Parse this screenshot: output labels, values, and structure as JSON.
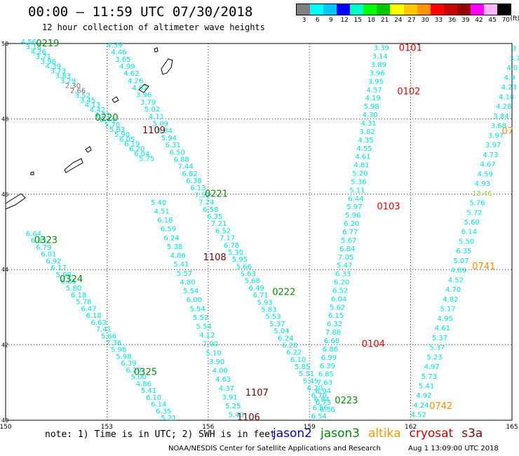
{
  "header": {
    "title": "00:00 – 11:59 UTC 07/30/2018",
    "subtitle": "12 hour collection of altimeter wave heights"
  },
  "legend": {
    "colors": [
      "#808080",
      "#00ffff",
      "#00c8ff",
      "#0000ff",
      "#00ffc8",
      "#00ff00",
      "#00c800",
      "#ffff00",
      "#ffc800",
      "#ff9600",
      "#ff0000",
      "#c80000",
      "#960000",
      "#ff00ff",
      "#ffb4ff",
      "#000000"
    ],
    "ticks": [
      "3",
      "6",
      "9",
      "12",
      "15",
      "18",
      "21",
      "24",
      "27",
      "30",
      "33",
      "36",
      "39",
      "42",
      "45",
      "70"
    ],
    "unit": "(ft)"
  },
  "map": {
    "lon_ticks": [
      "150",
      "153",
      "156",
      "159",
      "162",
      "165"
    ],
    "lat_ticks": [
      "50",
      "48",
      "46",
      "44",
      "42",
      "40"
    ],
    "lon_range": [
      150,
      165
    ],
    "lat_range": [
      40,
      50
    ],
    "colors": {
      "cyan": "#00e0e8",
      "gray": "#707070",
      "green": "#2ea32e",
      "olive": "#9ec83c",
      "orange": "#ff8c00"
    },
    "tracks": [
      {
        "values": [
          "4.56",
          "3.18",
          "4.26",
          "3.71",
          "3.96",
          "4.39",
          "3.73",
          "3.83",
          "3.29",
          "2.30",
          "2.66",
          "3.52",
          "3.45",
          "4.13",
          "4.42",
          "4.21",
          "6.44",
          "5.70",
          "5.83",
          "5.90",
          "6.05",
          "6.19",
          "6.20",
          "6.04",
          "5.75"
        ],
        "lon0": 150.45,
        "lat0": 49.98,
        "lon1": 153.95,
        "lat1": 46.88,
        "gray": [
          "2.30",
          "2.66"
        ]
      },
      {
        "values": [
          "4.39",
          "4.46",
          "3.65",
          "4.99",
          "4.62",
          "4.26",
          "4.07",
          "3.96",
          "3.79",
          "5.02",
          "4.11",
          "5.09",
          "5.84",
          "5.94",
          "6.31",
          "6.50",
          "6.88",
          "7.44",
          "6.82",
          "6.38",
          "6.13",
          "7.52",
          "7.24",
          "6.58",
          "6.35",
          "7.21",
          "6.52",
          "7.17",
          "6.78",
          "5.30",
          "5.95",
          "5.66",
          "5.63",
          "5.68",
          "6.49",
          "6.71",
          "5.93",
          "5.83",
          "5.53",
          "5.37",
          "5.04",
          "6.24",
          "6.20",
          "6.22",
          "6.10",
          "5.85",
          "5.51",
          "5.45",
          "6.20",
          "6.70",
          "6.73",
          "6.36"
        ],
        "lon0": 153.0,
        "lat0": 49.9,
        "lon1": 159.3,
        "lat1": 40.22
      },
      {
        "values": [
          "5.40",
          "4.51",
          "6.18",
          "6.59",
          "6.24",
          "5.38",
          "4.86",
          "5.41",
          "5.57",
          "4.80",
          "5.54",
          "6.00",
          "5.54",
          "5.52",
          "5.54",
          "4.12",
          "7.90",
          "5.10",
          "3.90",
          "4.00",
          "4.63",
          "4.37",
          "3.91",
          "5.25",
          "5.43"
        ],
        "lon0": 154.3,
        "lat0": 45.72,
        "lon1": 156.6,
        "lat1": 40.08
      },
      {
        "values": [
          "6.64",
          "6.83",
          "6.79",
          "6.01",
          "6.92",
          "6.17",
          "5.98",
          "6.81",
          "5.80",
          "6.18",
          "5.78",
          "6.47",
          "6.18",
          "6.63",
          "7.41",
          "5.66",
          "7.36",
          "5.98",
          "5.98",
          "6.39",
          "6.29",
          "5.00",
          "4.86",
          "5.41",
          "6.10",
          "6.14",
          "6.35",
          "5.21"
        ],
        "lon0": 150.6,
        "lat0": 44.89,
        "lon1": 154.6,
        "lat1": 40.0
      },
      {
        "values": [
          "3.39",
          "3.14",
          "3.89",
          "3.96",
          "3.95",
          "4.57",
          "4.19",
          "5.98",
          "4.30",
          "4.31",
          "3.82",
          "4.35",
          "4.55",
          "4.61",
          "4.81",
          "5.20",
          "5.36",
          "5.11",
          "6.44",
          "5.97",
          "5.96",
          "6.20",
          "6.77",
          "5.67",
          "6.84",
          "7.05",
          "5.47",
          "6.33",
          "6.20",
          "6.52",
          "6.04",
          "5.62",
          "6.15",
          "6.32",
          "7.88",
          "6.68",
          "6.86",
          "6.99",
          "6.39",
          "6.85",
          "7.63",
          "6.94",
          "6.84",
          "6.56",
          "6.54"
        ],
        "lon0": 160.9,
        "lat0": 49.82,
        "lon1": 159.05,
        "lat1": 40.05
      },
      {
        "values": [
          "3",
          "3.7",
          "4.0",
          "4.9",
          "4.23",
          "4.10",
          "4.28",
          "3.84",
          "3.68",
          "3.97",
          "3.97",
          "4.73",
          "4.67",
          "4.59",
          "4.93",
          "13.46",
          "5.76",
          "5.72",
          "5.60",
          "6.14",
          "5.50",
          "6.35",
          "5.07",
          "4.89",
          "4.52",
          "4.70",
          "4.82",
          "5.17",
          "4.95",
          "4.61",
          "5.37",
          "5.37",
          "5.23",
          "4.97",
          "5.73",
          "5.41",
          "4.92",
          "4.24",
          "4.52"
        ],
        "lon0": 165.0,
        "lat0": 49.8,
        "lon1": 162.0,
        "lat1": 40.08,
        "olive": [
          "13.46"
        ]
      }
    ],
    "passes": [
      {
        "text": "0219",
        "lon": 150.9,
        "lat": 49.93,
        "color": "green"
      },
      {
        "text": "0220",
        "lon": 152.65,
        "lat": 47.95,
        "color": "green"
      },
      {
        "text": "0221",
        "lon": 155.9,
        "lat": 45.93,
        "color": "green"
      },
      {
        "text": "0222",
        "lon": 157.9,
        "lat": 43.32,
        "color": "green"
      },
      {
        "text": "0223",
        "lon": 159.75,
        "lat": 40.45,
        "color": "green"
      },
      {
        "text": "0323",
        "lon": 150.85,
        "lat": 44.7,
        "color": "green"
      },
      {
        "text": "0324",
        "lon": 151.6,
        "lat": 43.67,
        "color": "green"
      },
      {
        "text": "0325",
        "lon": 153.8,
        "lat": 41.2,
        "color": "green"
      },
      {
        "text": "1109",
        "lon": 154.05,
        "lat": 47.62,
        "color": "darkred"
      },
      {
        "text": "1108",
        "lon": 155.85,
        "lat": 44.25,
        "color": "darkred"
      },
      {
        "text": "1107",
        "lon": 157.1,
        "lat": 40.65,
        "color": "darkred"
      },
      {
        "text": "1106",
        "lon": 156.85,
        "lat": 40.0,
        "color": "darkred"
      },
      {
        "text": "0101",
        "lon": 161.65,
        "lat": 49.8,
        "color": "red"
      },
      {
        "text": "0102",
        "lon": 161.6,
        "lat": 48.65,
        "color": "red"
      },
      {
        "text": "0103",
        "lon": 161.0,
        "lat": 45.6,
        "color": "red"
      },
      {
        "text": "0104",
        "lon": 160.55,
        "lat": 41.95,
        "color": "red"
      },
      {
        "text": "0741",
        "lon": 163.82,
        "lat": 44.0,
        "color": "orange"
      },
      {
        "text": "0742",
        "lon": 162.55,
        "lat": 40.3,
        "color": "orange"
      },
      {
        "text": "07",
        "lon": 164.7,
        "lat": 47.6,
        "color": "orange"
      }
    ]
  },
  "note": "note: 1) Time is in UTC; 2) SWH is in feet",
  "satellites": [
    {
      "name": "jason2",
      "color": "#0000cc"
    },
    {
      "name": "jason3",
      "color": "#008800"
    },
    {
      "name": "altika",
      "color": "#ff9900"
    },
    {
      "name": "cryosat",
      "color": "#cc0000"
    },
    {
      "name": "s3a",
      "color": "#880000"
    }
  ],
  "footer": {
    "credit": "NOAA/NESDIS Center for Satellite Applications and Research",
    "timestamp": "Aug  1 13:09:00 UTC 2018"
  }
}
